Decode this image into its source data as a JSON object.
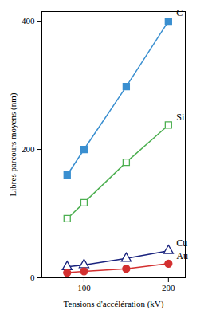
{
  "chart_data": {
    "type": "line",
    "x_label": "Tensions d'accélération (kV)",
    "y_label": "Libres parcours moyens (nm)",
    "x": [
      80,
      100,
      150,
      200
    ],
    "series": [
      {
        "name": "C",
        "color": "#3a8fd0",
        "marker": "square",
        "values": [
          160,
          200,
          298,
          400
        ]
      },
      {
        "name": "Si",
        "color": "#4caf50",
        "marker": "square-open",
        "values": [
          92,
          117,
          180,
          238
        ]
      },
      {
        "name": "Cu",
        "color": "#1a237e",
        "marker": "triangle-open",
        "values": [
          17,
          20,
          30,
          42
        ]
      },
      {
        "name": "Au",
        "color": "#d32f2f",
        "marker": "circle",
        "values": [
          8,
          10,
          14,
          22
        ]
      }
    ],
    "xlim": [
      50,
      220
    ],
    "xticks": [
      100,
      200
    ],
    "ylim": [
      0,
      415
    ],
    "yticks": [
      0,
      200,
      400
    ],
    "grid": false
  }
}
